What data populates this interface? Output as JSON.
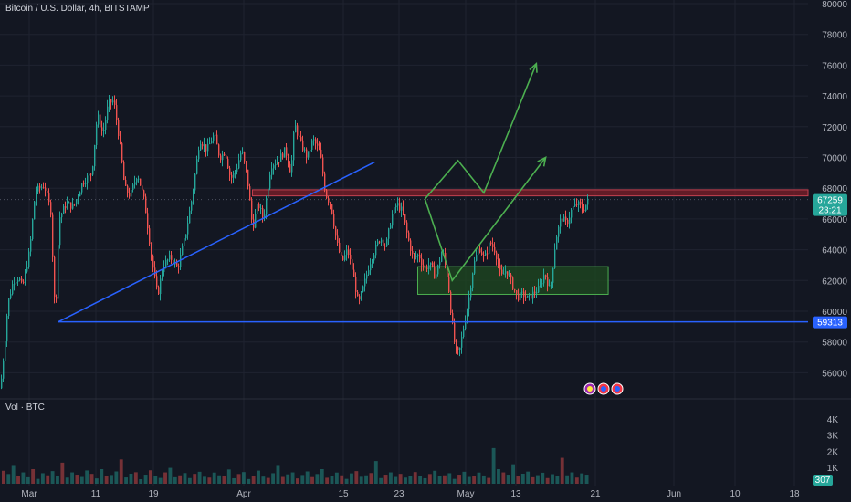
{
  "header": {
    "symbol_label": "Bitcoin / U.S. Dollar, 4h, BITSTAMP"
  },
  "volume_pane": {
    "label": "Vol · BTC"
  },
  "colors": {
    "background": "#131722",
    "grid": "#1f2330",
    "up": "#26a69a",
    "down": "#ef5350",
    "blue_line": "#2962ff",
    "arrow_green": "#4caf50",
    "resistance_fill": "#7e1f2a",
    "support_fill": "#1e4620",
    "price_tag": "#26a69a",
    "support_tag": "#2962ff"
  },
  "icons": [
    "flash-event-icon",
    "us-flag-event-icon",
    "us-flag-event-icon"
  ],
  "chart_data": {
    "type": "candlestick",
    "x_axis_labels": [
      "Mar",
      "11",
      "19",
      "Apr",
      "15",
      "23",
      "May",
      "13",
      "21",
      "Jun",
      "10",
      "18"
    ],
    "price_axis_labels": [
      "80000",
      "78000",
      "76000",
      "74000",
      "72000",
      "70000",
      "68000",
      "66000",
      "64000",
      "62000",
      "60000",
      "58000",
      "56000"
    ],
    "price_ylim": [
      54800,
      80000
    ],
    "volume_axis_labels": [
      "4K",
      "3K",
      "2K",
      "1K"
    ],
    "volume_ylim": [
      0,
      4500
    ],
    "current_price": {
      "value": "67259",
      "countdown": "23:21"
    },
    "support_level": {
      "value": "59313"
    },
    "volume_current": {
      "value": "307"
    },
    "price_anchors": [
      [
        0,
        55000
      ],
      [
        4,
        57500
      ],
      [
        8,
        60500
      ],
      [
        14,
        62000
      ],
      [
        20,
        62200
      ],
      [
        24,
        61500
      ],
      [
        32,
        64000
      ],
      [
        38,
        67800
      ],
      [
        48,
        68200
      ],
      [
        55,
        66500
      ],
      [
        60,
        59400
      ],
      [
        64,
        66000
      ],
      [
        72,
        67000
      ],
      [
        80,
        66800
      ],
      [
        90,
        68400
      ],
      [
        100,
        69000
      ],
      [
        106,
        72800
      ],
      [
        112,
        71500
      ],
      [
        118,
        73500
      ],
      [
        124,
        73700
      ],
      [
        130,
        71200
      ],
      [
        136,
        68000
      ],
      [
        142,
        67500
      ],
      [
        150,
        69000
      ],
      [
        158,
        67000
      ],
      [
        166,
        63200
      ],
      [
        172,
        61000
      ],
      [
        178,
        63000
      ],
      [
        186,
        63500
      ],
      [
        194,
        62800
      ],
      [
        202,
        64800
      ],
      [
        210,
        67500
      ],
      [
        218,
        71200
      ],
      [
        226,
        70500
      ],
      [
        234,
        71500
      ],
      [
        240,
        70000
      ],
      [
        246,
        70400
      ],
      [
        252,
        68600
      ],
      [
        258,
        69200
      ],
      [
        264,
        70500
      ],
      [
        270,
        68800
      ],
      [
        276,
        65400
      ],
      [
        282,
        67000
      ],
      [
        288,
        66000
      ],
      [
        296,
        69500
      ],
      [
        304,
        69800
      ],
      [
        312,
        70500
      ],
      [
        318,
        69000
      ],
      [
        322,
        72200
      ],
      [
        328,
        71000
      ],
      [
        336,
        70000
      ],
      [
        342,
        71200
      ],
      [
        350,
        70300
      ],
      [
        356,
        67600
      ],
      [
        362,
        66900
      ],
      [
        368,
        64500
      ],
      [
        374,
        63200
      ],
      [
        380,
        64000
      ],
      [
        386,
        62500
      ],
      [
        392,
        60400
      ],
      [
        398,
        61700
      ],
      [
        404,
        63100
      ],
      [
        410,
        64000
      ],
      [
        416,
        64800
      ],
      [
        422,
        64200
      ],
      [
        428,
        66100
      ],
      [
        434,
        67000
      ],
      [
        440,
        66500
      ],
      [
        446,
        64800
      ],
      [
        452,
        63400
      ],
      [
        458,
        63700
      ],
      [
        464,
        62700
      ],
      [
        470,
        63100
      ],
      [
        476,
        62200
      ],
      [
        484,
        64000
      ],
      [
        490,
        62000
      ],
      [
        494,
        59500
      ],
      [
        498,
        57500
      ],
      [
        502,
        57200
      ],
      [
        506,
        58600
      ],
      [
        512,
        60500
      ],
      [
        518,
        63000
      ],
      [
        524,
        64200
      ],
      [
        530,
        63400
      ],
      [
        536,
        64500
      ],
      [
        542,
        63900
      ],
      [
        548,
        62200
      ],
      [
        554,
        62700
      ],
      [
        560,
        61800
      ],
      [
        566,
        60900
      ],
      [
        572,
        61100
      ],
      [
        578,
        60800
      ],
      [
        584,
        61200
      ],
      [
        590,
        61500
      ],
      [
        596,
        62500
      ],
      [
        602,
        61300
      ],
      [
        608,
        64700
      ],
      [
        614,
        66100
      ],
      [
        620,
        65700
      ],
      [
        626,
        66700
      ],
      [
        632,
        67000
      ],
      [
        638,
        66600
      ],
      [
        644,
        67259
      ]
    ],
    "volume_values": [
      800,
      600,
      1100,
      500,
      700,
      400,
      900,
      300,
      650,
      520,
      780,
      450,
      1300,
      380,
      700,
      560,
      420,
      820,
      610,
      330,
      900,
      470,
      540,
      760,
      1500,
      390,
      620,
      710,
      280,
      560,
      830,
      450,
      360,
      700,
      980,
      400,
      520,
      660,
      350,
      610,
      740,
      430,
      380,
      690,
      520,
      470,
      880,
      340,
      600,
      720,
      290,
      500,
      810,
      440,
      360,
      650,
      1100,
      420,
      580,
      700,
      330,
      540,
      760,
      410,
      600,
      900,
      370,
      480,
      690,
      520,
      300,
      640,
      780,
      430,
      520,
      660,
      1400,
      350,
      560,
      700,
      420,
      610,
      380,
      500,
      720,
      450,
      340,
      600,
      800,
      470,
      520,
      650,
      300,
      560,
      740,
      420,
      480,
      690,
      510,
      360,
      2200,
      900,
      700,
      560,
      1200,
      480,
      620,
      750,
      400,
      530,
      680,
      350,
      590,
      460,
      1600,
      520,
      700,
      380,
      640,
      560
    ],
    "annotations": {
      "triangle_lower": [
        {
          "day": 0,
          "price": 59313
        },
        {
          "day": 75,
          "price": 59313
        }
      ],
      "triangle_upper": [
        {
          "day": 0,
          "price": 59313
        },
        {
          "day": 44,
          "price": 69700
        }
      ],
      "resistance_zone": {
        "from": 67500,
        "to": 67900,
        "day_start": 27
      },
      "support_zone": {
        "from": 61100,
        "to": 62900,
        "day_start": 50,
        "day_end": 76.5
      },
      "path_up": [
        {
          "day": 51,
          "price": 67300
        },
        {
          "day": 55.6,
          "price": 69800
        },
        {
          "day": 59.2,
          "price": 67700
        },
        {
          "day": 66.5,
          "price": 76100
        }
      ],
      "path_down": [
        {
          "day": 51,
          "price": 67300
        },
        {
          "day": 54.8,
          "price": 62000
        },
        {
          "day": 67.8,
          "price": 70000
        }
      ]
    }
  }
}
